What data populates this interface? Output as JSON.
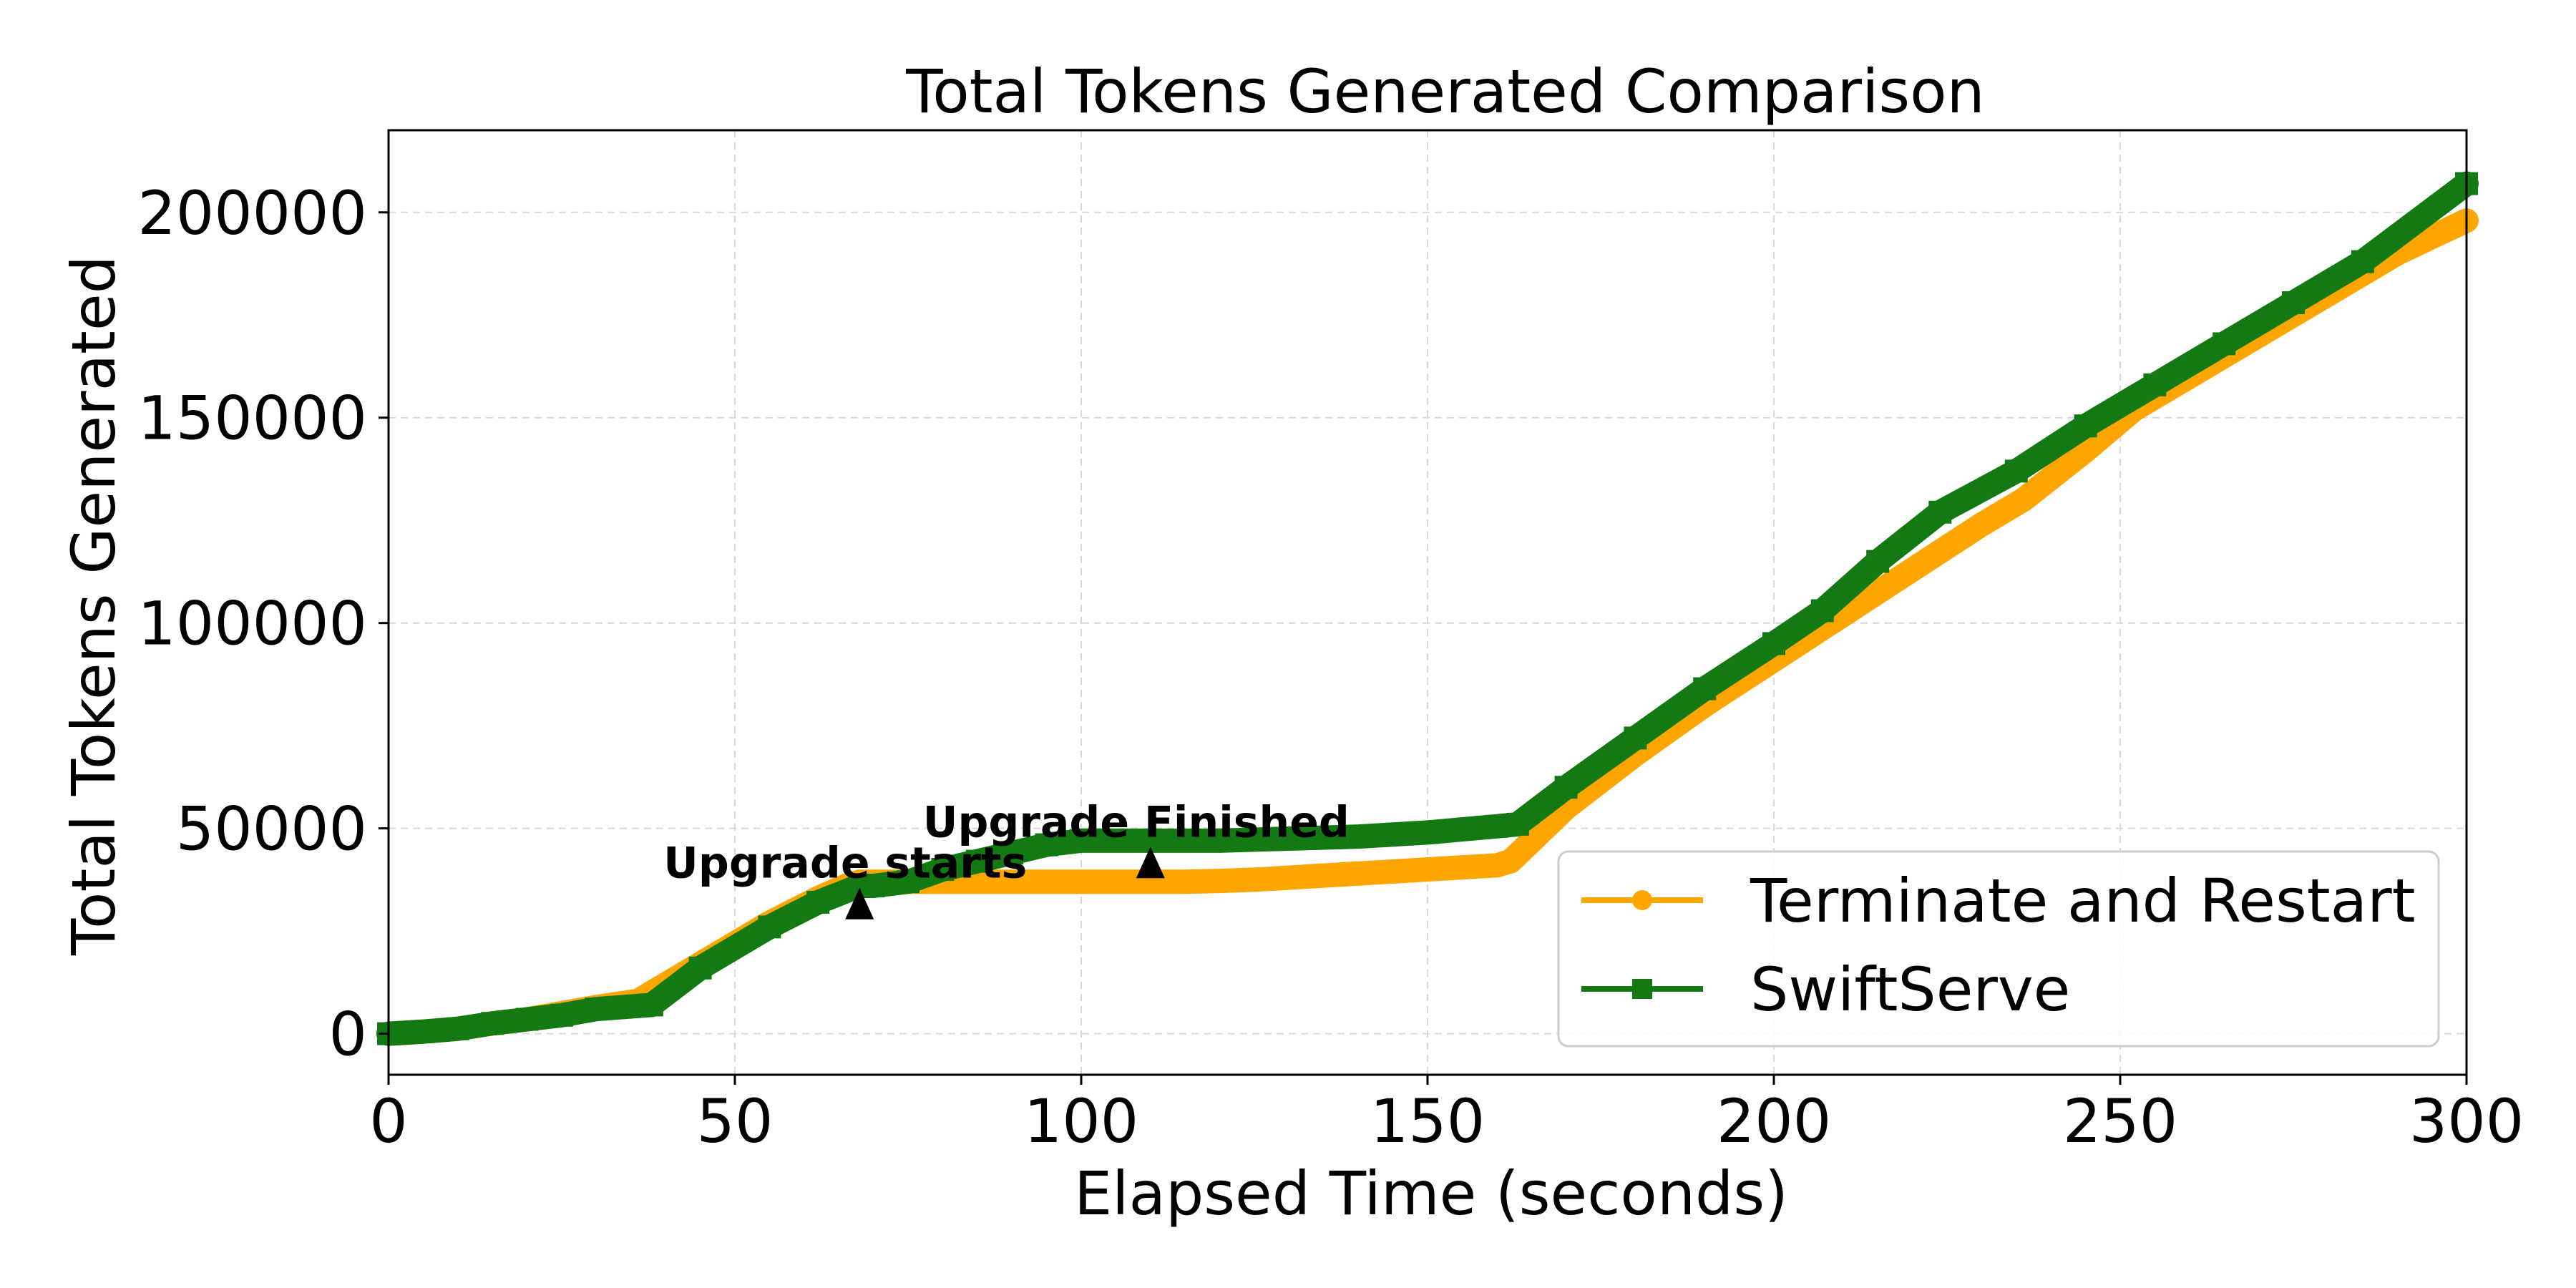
{
  "chart_data": {
    "type": "line",
    "title": "Total Tokens Generated Comparison",
    "xlabel": "Elapsed Time (seconds)",
    "ylabel": "Total Tokens Generated",
    "xlim": [
      0,
      300
    ],
    "ylim": [
      -10000,
      220000
    ],
    "xticks": [
      0,
      50,
      100,
      150,
      200,
      250,
      300
    ],
    "yticks": [
      0,
      50000,
      100000,
      150000,
      200000
    ],
    "xtick_labels": [
      "0",
      "50",
      "100",
      "150",
      "200",
      "250",
      "300"
    ],
    "ytick_labels": [
      "0",
      "50000",
      "100000",
      "150000",
      "200000"
    ],
    "grid": true,
    "legend_position": "lower-right",
    "series": [
      {
        "name": "Terminate and Restart",
        "color": "#FFA500",
        "marker": "circle",
        "x": [
          0,
          5,
          10,
          15,
          20,
          25,
          30,
          36,
          45,
          55,
          62,
          66,
          68,
          70,
          75,
          80,
          85,
          90,
          95,
          100,
          105,
          108,
          110,
          115,
          120,
          125,
          130,
          135,
          140,
          145,
          150,
          155,
          160,
          162,
          170,
          180,
          190,
          200,
          210,
          220,
          230,
          236,
          245,
          252,
          260,
          270,
          280,
          290,
          300
        ],
        "y": [
          0,
          500,
          1200,
          2500,
          3500,
          5000,
          6500,
          8000,
          17000,
          27000,
          33000,
          36000,
          37000,
          37000,
          37000,
          37000,
          37000,
          37000,
          37000,
          37000,
          37000,
          37000,
          37000,
          37000,
          37200,
          37500,
          38000,
          38500,
          39000,
          39500,
          40000,
          40500,
          41000,
          42000,
          55000,
          68000,
          80000,
          91000,
          102000,
          113000,
          124000,
          130000,
          142000,
          152000,
          160000,
          170000,
          180000,
          190000,
          198000
        ]
      },
      {
        "name": "SwiftServe",
        "color": "#137A13",
        "marker": "square",
        "x": [
          0,
          5,
          10,
          15,
          20,
          25,
          30,
          38,
          45,
          55,
          62,
          68,
          70,
          75,
          80,
          85,
          90,
          95,
          100,
          105,
          110,
          115,
          120,
          130,
          140,
          150,
          160,
          163,
          170,
          180,
          190,
          200,
          207,
          215,
          224,
          235,
          245,
          255,
          265,
          275,
          285,
          300
        ],
        "y": [
          0,
          500,
          1200,
          2500,
          3500,
          4500,
          6000,
          7000,
          16000,
          26000,
          32000,
          36000,
          36000,
          37000,
          40000,
          42000,
          44000,
          46000,
          47000,
          47000,
          47000,
          47000,
          47000,
          47500,
          48000,
          49000,
          50500,
          51000,
          60000,
          72000,
          84000,
          95000,
          103000,
          115000,
          127000,
          137000,
          148000,
          158000,
          168000,
          178000,
          188000,
          207000
        ]
      }
    ],
    "annotations": [
      {
        "text": "Upgrade starts",
        "x": 68,
        "y": 31000
      },
      {
        "text": "Upgrade Finished",
        "x": 110,
        "y": 41000
      }
    ]
  }
}
